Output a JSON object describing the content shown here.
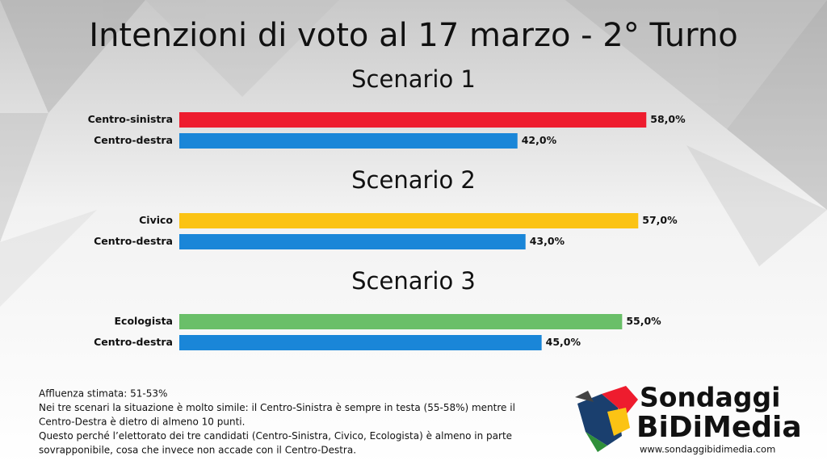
{
  "title": "Intenzioni di voto al 17 marzo - 2° Turno",
  "chart_data": [
    {
      "type": "hbar",
      "title": "Scenario 1",
      "categories": [
        "Centro-sinistra",
        "Centro-destra"
      ],
      "values": [
        58,
        42
      ],
      "value_labels": [
        "58,0%",
        "42,0%"
      ],
      "colors": [
        "#ee1c2e",
        "#1a86d8"
      ]
    },
    {
      "type": "hbar",
      "title": "Scenario 2",
      "categories": [
        "Civico",
        "Centro-destra"
      ],
      "values": [
        57,
        43
      ],
      "value_labels": [
        "57,0%",
        "43,0%"
      ],
      "colors": [
        "#fbc314",
        "#1a86d8"
      ]
    },
    {
      "type": "hbar",
      "title": "Scenario 3",
      "categories": [
        "Ecologista",
        "Centro-destra"
      ],
      "values": [
        55,
        45
      ],
      "value_labels": [
        "55,0%",
        "45,0%"
      ],
      "colors": [
        "#6abf69",
        "#1a86d8"
      ]
    }
  ],
  "notes": [
    "Affluenza stimata: 51-53%",
    "Nei tre scenari la situazione è molto simile: il Centro-Sinistra è sempre in testa (55-58%) mentre il",
    "Centro-Destra è dietro di almeno 10 punti.",
    "Questo perché l’elettorato dei tre candidati (Centro-Sinistra, Civico, Ecologista) è almeno in parte",
    "sovrapponibile, cosa che invece non accade con il Centro-Destra."
  ],
  "brand": {
    "line1": "Sondaggi",
    "line2": "BiDiMedia",
    "url": "www.sondaggibidimedia.com"
  }
}
